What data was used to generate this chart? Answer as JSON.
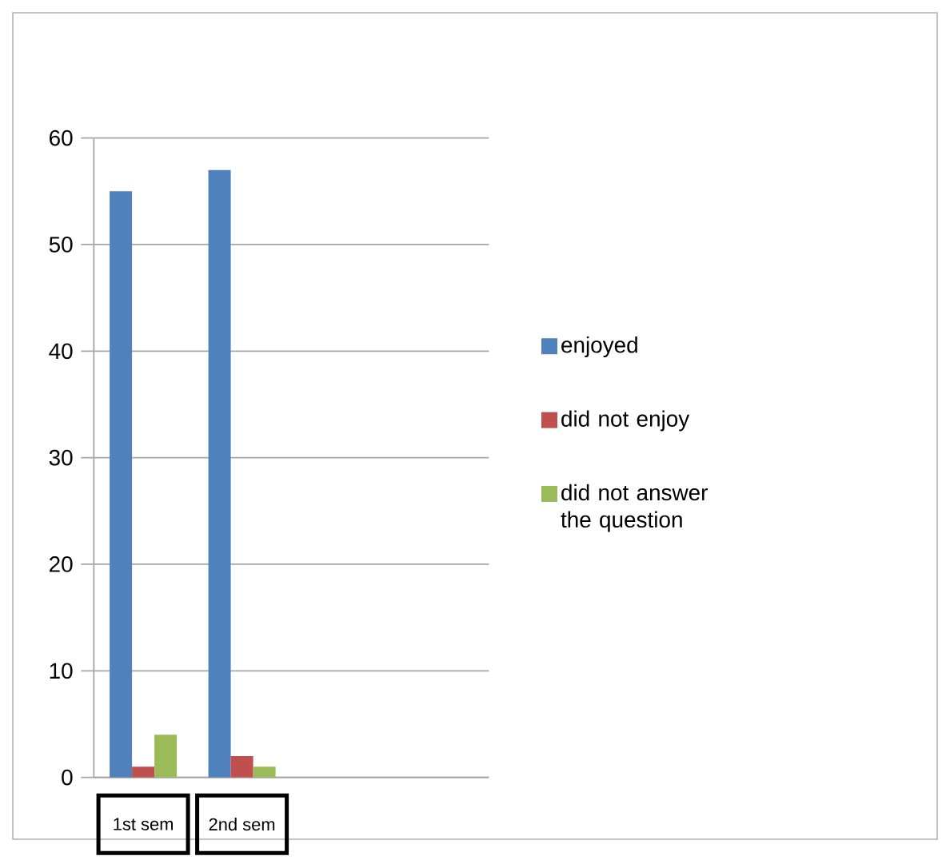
{
  "chart_data": {
    "type": "bar",
    "categories": [
      "1st sem",
      "2nd sem",
      null,
      null
    ],
    "series": [
      {
        "name": "enjoyed",
        "color": "#4f81bd",
        "values": [
          55,
          57,
          null,
          null
        ]
      },
      {
        "name": "did not enjoy",
        "color": "#c0504d",
        "values": [
          1,
          2,
          null,
          null
        ]
      },
      {
        "name": "did not answer the question",
        "color": "#9bbb59",
        "values": [
          4,
          1,
          null,
          null
        ]
      }
    ],
    "ylim": [
      0,
      60
    ],
    "yticks": [
      0,
      10,
      20,
      30,
      40,
      50,
      60
    ],
    "grid": "y",
    "legend": "right"
  }
}
